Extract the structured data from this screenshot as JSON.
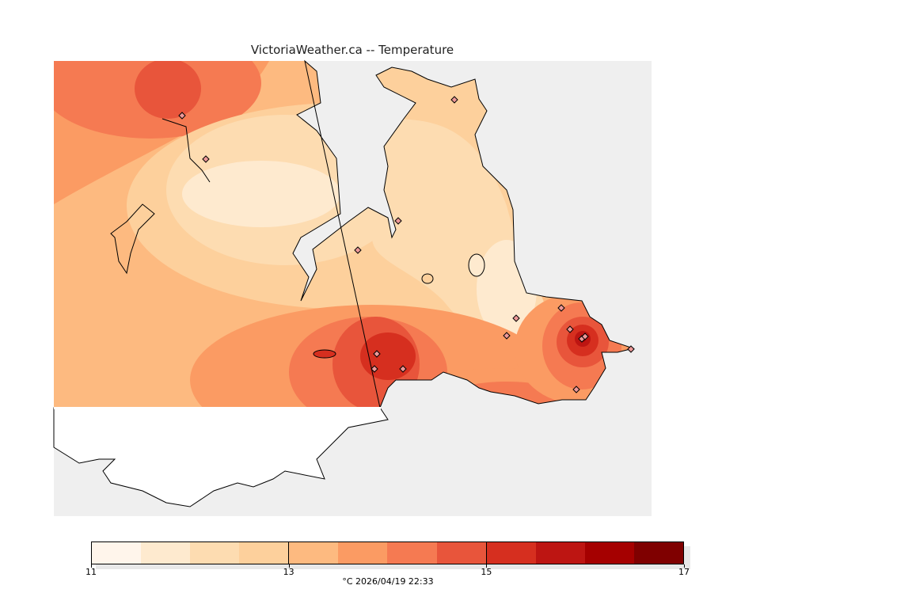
{
  "title": "VictoriaWeather.ca -- Temperature",
  "colorbar": {
    "colors": [
      "#fff5eb",
      "#feeacf",
      "#fddcb1",
      "#fdd09c",
      "#fdba80",
      "#fb9b63",
      "#f57a52",
      "#e8553b",
      "#d62f1f",
      "#bd1512",
      "#a50000",
      "#7f0000"
    ],
    "tick_labels": [
      "11",
      "13",
      "15",
      "17"
    ],
    "range": [
      11,
      17
    ],
    "step": 0.5,
    "subtitle": "°C  2026/04/19 22:33"
  },
  "colors": {
    "water": "#efefef",
    "outside_land": "#ffffff"
  }
}
